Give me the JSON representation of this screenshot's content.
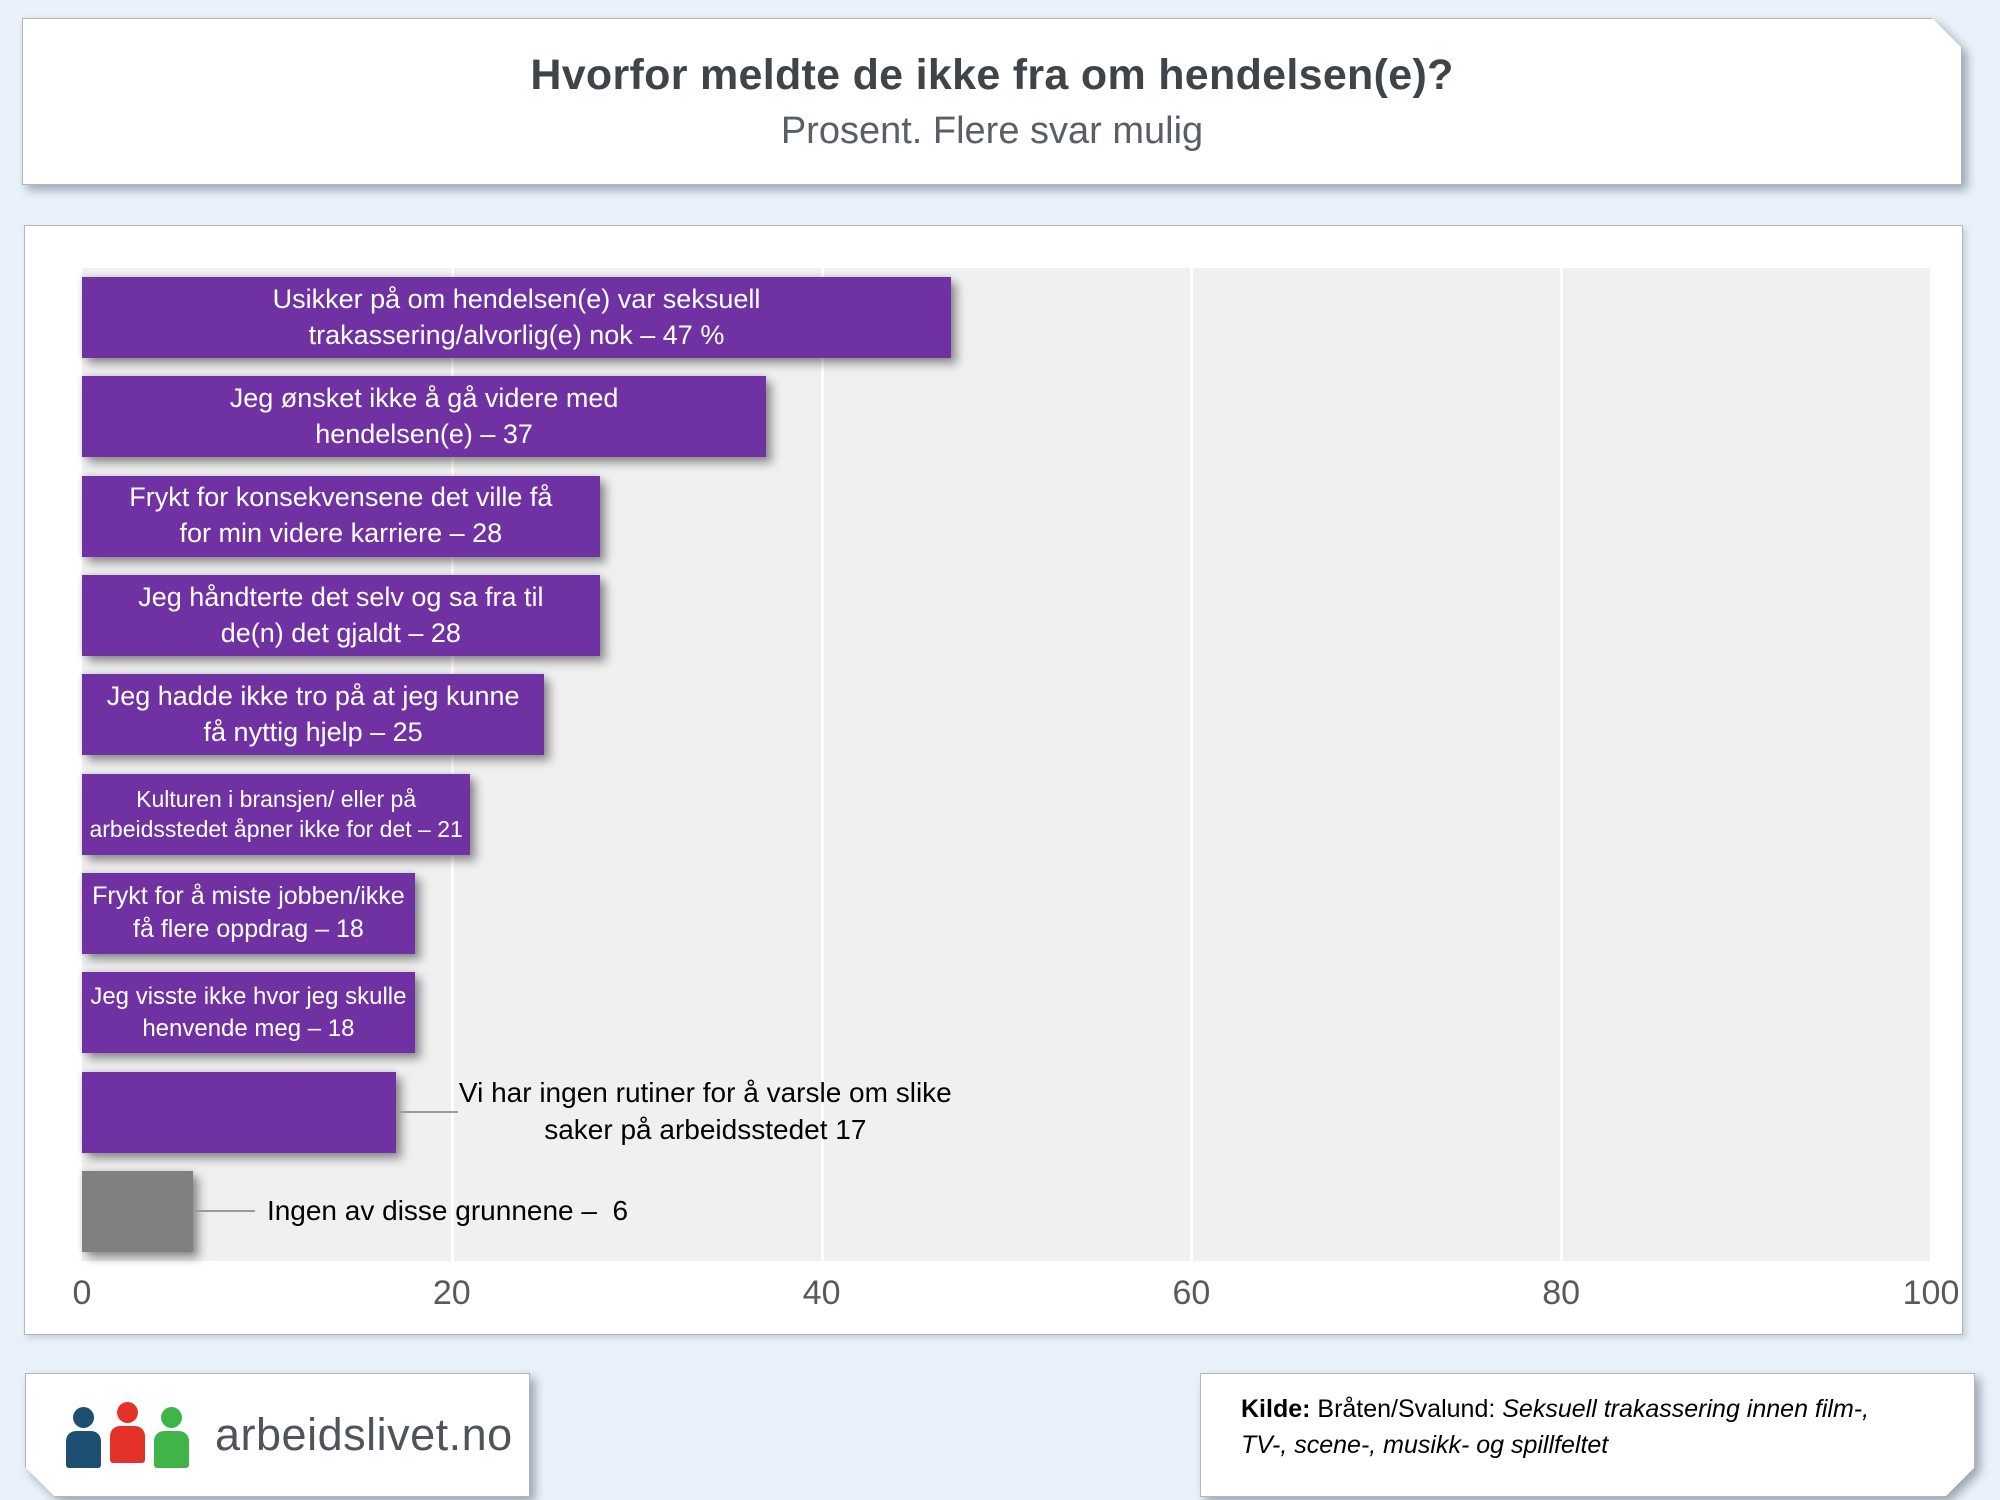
{
  "header": {
    "title": "Hvorfor meldte de ikke fra om hendelsen(e)?",
    "subtitle": "Prosent. Flere svar mulig"
  },
  "chart_data": {
    "type": "bar",
    "orientation": "horizontal",
    "title": "Hvorfor meldte de ikke fra om hendelsen(e)?",
    "subtitle": "Prosent. Flere svar mulig",
    "xlim": [
      0,
      100
    ],
    "x_ticks": [
      0,
      20,
      40,
      60,
      80,
      100
    ],
    "grid": "vertical-white-lines",
    "legend": "none",
    "colors": {
      "primary_bar": "#7032a2",
      "neutral_bar": "#808080",
      "plot_background": "#f0f0f0"
    },
    "bars": [
      {
        "value": 47,
        "color_key": "primary_bar",
        "label_position": "inside",
        "lines": [
          "Usikker på om hendelsen(e) var seksuell",
          "trakassering/alvorlig(e) nok – 47 %"
        ]
      },
      {
        "value": 37,
        "color_key": "primary_bar",
        "label_position": "inside",
        "lines": [
          "Jeg ønsket ikke å gå videre med",
          "hendelsen(e) – 37"
        ]
      },
      {
        "value": 28,
        "color_key": "primary_bar",
        "label_position": "inside",
        "lines": [
          "Frykt for konsekvensene det ville få",
          "for min videre karriere – 28"
        ]
      },
      {
        "value": 28,
        "color_key": "primary_bar",
        "label_position": "inside",
        "lines": [
          "Jeg håndterte det selv og sa fra til",
          "de(n) det gjaldt – 28"
        ]
      },
      {
        "value": 25,
        "color_key": "primary_bar",
        "label_position": "inside",
        "lines": [
          "Jeg hadde ikke tro på at jeg kunne",
          "få nyttig hjelp – 25"
        ]
      },
      {
        "value": 21,
        "color_key": "primary_bar",
        "label_position": "inside",
        "lines": [
          "Kulturen i bransjen/ eller på",
          "arbeidsstedet åpner ikke for det – 21"
        ]
      },
      {
        "value": 18,
        "color_key": "primary_bar",
        "label_position": "inside",
        "lines": [
          "Frykt for å miste jobben/ikke",
          "få flere oppdrag – 18"
        ]
      },
      {
        "value": 18,
        "color_key": "primary_bar",
        "label_position": "inside",
        "lines": [
          "Jeg visste ikke hvor jeg skulle",
          "henvende meg – 18"
        ]
      },
      {
        "value": 17,
        "color_key": "primary_bar",
        "label_position": "outside",
        "lines": [
          "Vi har ingen rutiner for å varsle om slike",
          "saker på arbeidsstedet 17"
        ]
      },
      {
        "value": 6,
        "color_key": "neutral_bar",
        "label_position": "outside",
        "lines": [
          "Ingen av disse grunnene –  6"
        ]
      }
    ]
  },
  "footer": {
    "logo": {
      "text": "arbeidslivet.no",
      "icon": "three-people-icon",
      "icon_colors": [
        "#1c4f72",
        "#e53228",
        "#3fb549"
      ]
    },
    "source": {
      "label": "Kilde:",
      "authors": " Bråten/Svalund: ",
      "title_line1": "Seksuell trakassering innen film-,",
      "title_line2": "TV-, scene-, musikk- og spillfeltet"
    }
  }
}
